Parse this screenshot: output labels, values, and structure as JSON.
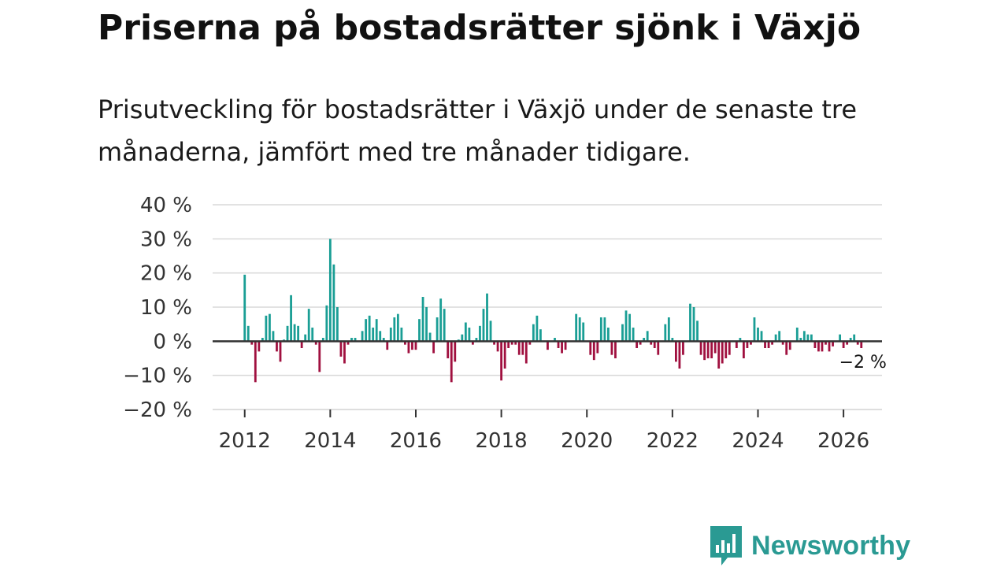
{
  "title": "Priserna på bostadsrätter sjönk i Växjö",
  "subtitle": "Prisutveckling för bostadsrätter i Växjö under de senaste tre månaderna, jämfört med tre månader tidigare.",
  "brand": {
    "name": "Newsworthy",
    "color": "#2a9a93"
  },
  "colors": {
    "positive": "#1a9e95",
    "negative": "#a0103f",
    "grid": "#d9d9d9",
    "zero": "#333333"
  },
  "chart_data": {
    "type": "bar",
    "title": "Priserna på bostadsrätter sjönk i Växjö",
    "xlabel": "",
    "ylabel": "",
    "ylim": [
      -20,
      40
    ],
    "y_ticks": [
      {
        "value": 40,
        "label": "40 %"
      },
      {
        "value": 30,
        "label": "30 %"
      },
      {
        "value": 20,
        "label": "20 %"
      },
      {
        "value": 10,
        "label": "10 %"
      },
      {
        "value": 0,
        "label": "0 %"
      },
      {
        "value": -10,
        "label": "−10 %"
      },
      {
        "value": -20,
        "label": "−20 %"
      }
    ],
    "x_range": [
      2011.25,
      2026.9
    ],
    "x_ticks": [
      "2012",
      "2014",
      "2016",
      "2018",
      "2020",
      "2022",
      "2024",
      "2026"
    ],
    "series_start_year": 2012,
    "series_start_month": 1,
    "end_label": "−2 %",
    "values": [
      19.5,
      4.5,
      -1,
      -12,
      -3,
      1,
      7.5,
      8,
      3,
      -3,
      -6,
      0.5,
      4.5,
      13.5,
      5,
      4.5,
      -2,
      2,
      9.5,
      4,
      -1,
      -9,
      1,
      10.5,
      30,
      22.5,
      10,
      -4.5,
      -6.5,
      -1,
      1,
      1,
      0,
      3,
      6.5,
      7.5,
      4,
      6.5,
      3,
      1,
      -2.5,
      4,
      7,
      8,
      4,
      -1,
      -3.5,
      -2.5,
      -2.5,
      6.5,
      13,
      10,
      2.5,
      -3.5,
      7,
      12.5,
      9.5,
      -5,
      -12,
      -6,
      0.5,
      2,
      5.5,
      4,
      -1,
      1,
      4.5,
      9.5,
      14,
      6,
      -1,
      -3,
      -11.5,
      -8,
      -2,
      -1,
      -1,
      -4,
      -4,
      -6.5,
      -1,
      5,
      7.5,
      3.5,
      0,
      -2.5,
      0,
      1,
      -2,
      -3.5,
      -2.5,
      0,
      0,
      8,
      7,
      5.5,
      0,
      -4,
      -5.5,
      -3.5,
      7,
      7,
      4,
      -4,
      -5,
      0,
      5,
      9,
      8,
      4,
      -2,
      -1,
      1,
      3,
      -1,
      -2,
      -4,
      0,
      5,
      7,
      1,
      -6,
      -8,
      -4,
      0,
      11,
      10,
      6,
      -4,
      -5.5,
      -5,
      -5,
      -3.5,
      -8,
      -6.5,
      -5,
      -4,
      0,
      -2,
      1,
      -5,
      -2,
      -1,
      7,
      4,
      3,
      -2,
      -2,
      -1,
      2,
      3,
      -1,
      -4,
      -2.5,
      0,
      4,
      1,
      3,
      2,
      2,
      -2,
      -3,
      -3,
      -1,
      -3,
      -1.5,
      0,
      2,
      -2,
      -1,
      1,
      2,
      -1,
      -2
    ]
  }
}
